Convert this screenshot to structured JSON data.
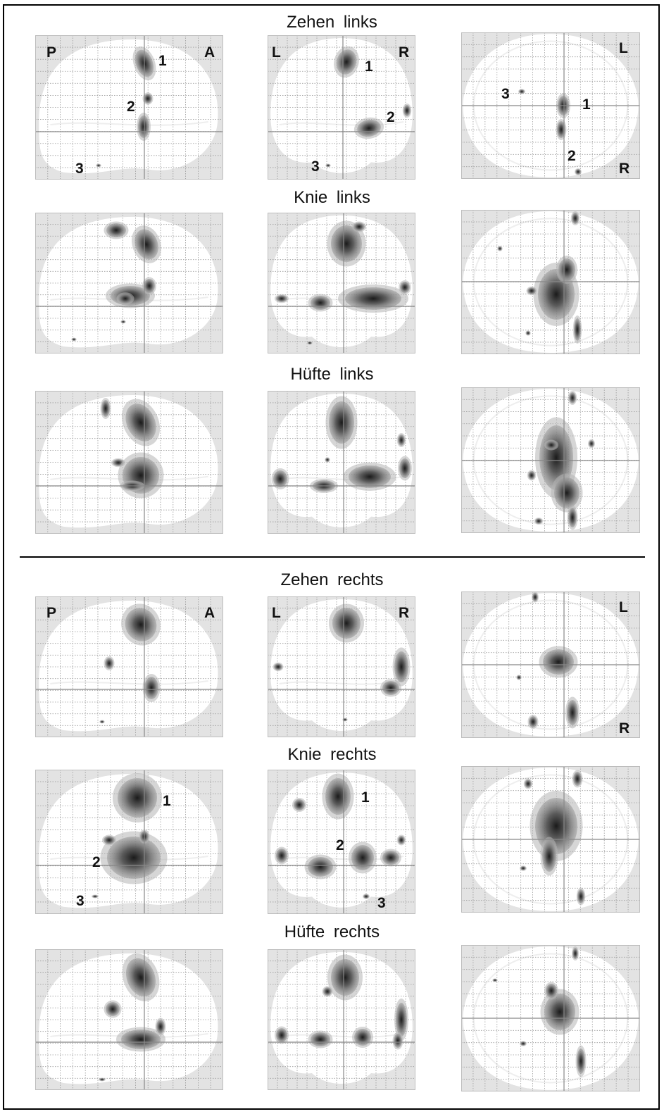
{
  "titles": {
    "zehen_links": "Zehen  links",
    "knie_links": "Knie  links",
    "huefte_links": "Hüfte  links",
    "zehen_rechts": "Zehen  rechts",
    "knie_rechts": "Knie  rechts",
    "huefte_rechts": "Hüfte  rechts"
  },
  "orientation": {
    "posterior": "P",
    "anterior": "A",
    "left": "L",
    "right": "R"
  },
  "markers": {
    "one": "1",
    "two": "2",
    "three": "3"
  },
  "colors": {
    "background_gray": "#e3e3e3",
    "brain_white": "#ffffff",
    "grid": "#9a9a9a",
    "crosshair": "#888888",
    "blob_dark": "#1a1a1a"
  }
}
